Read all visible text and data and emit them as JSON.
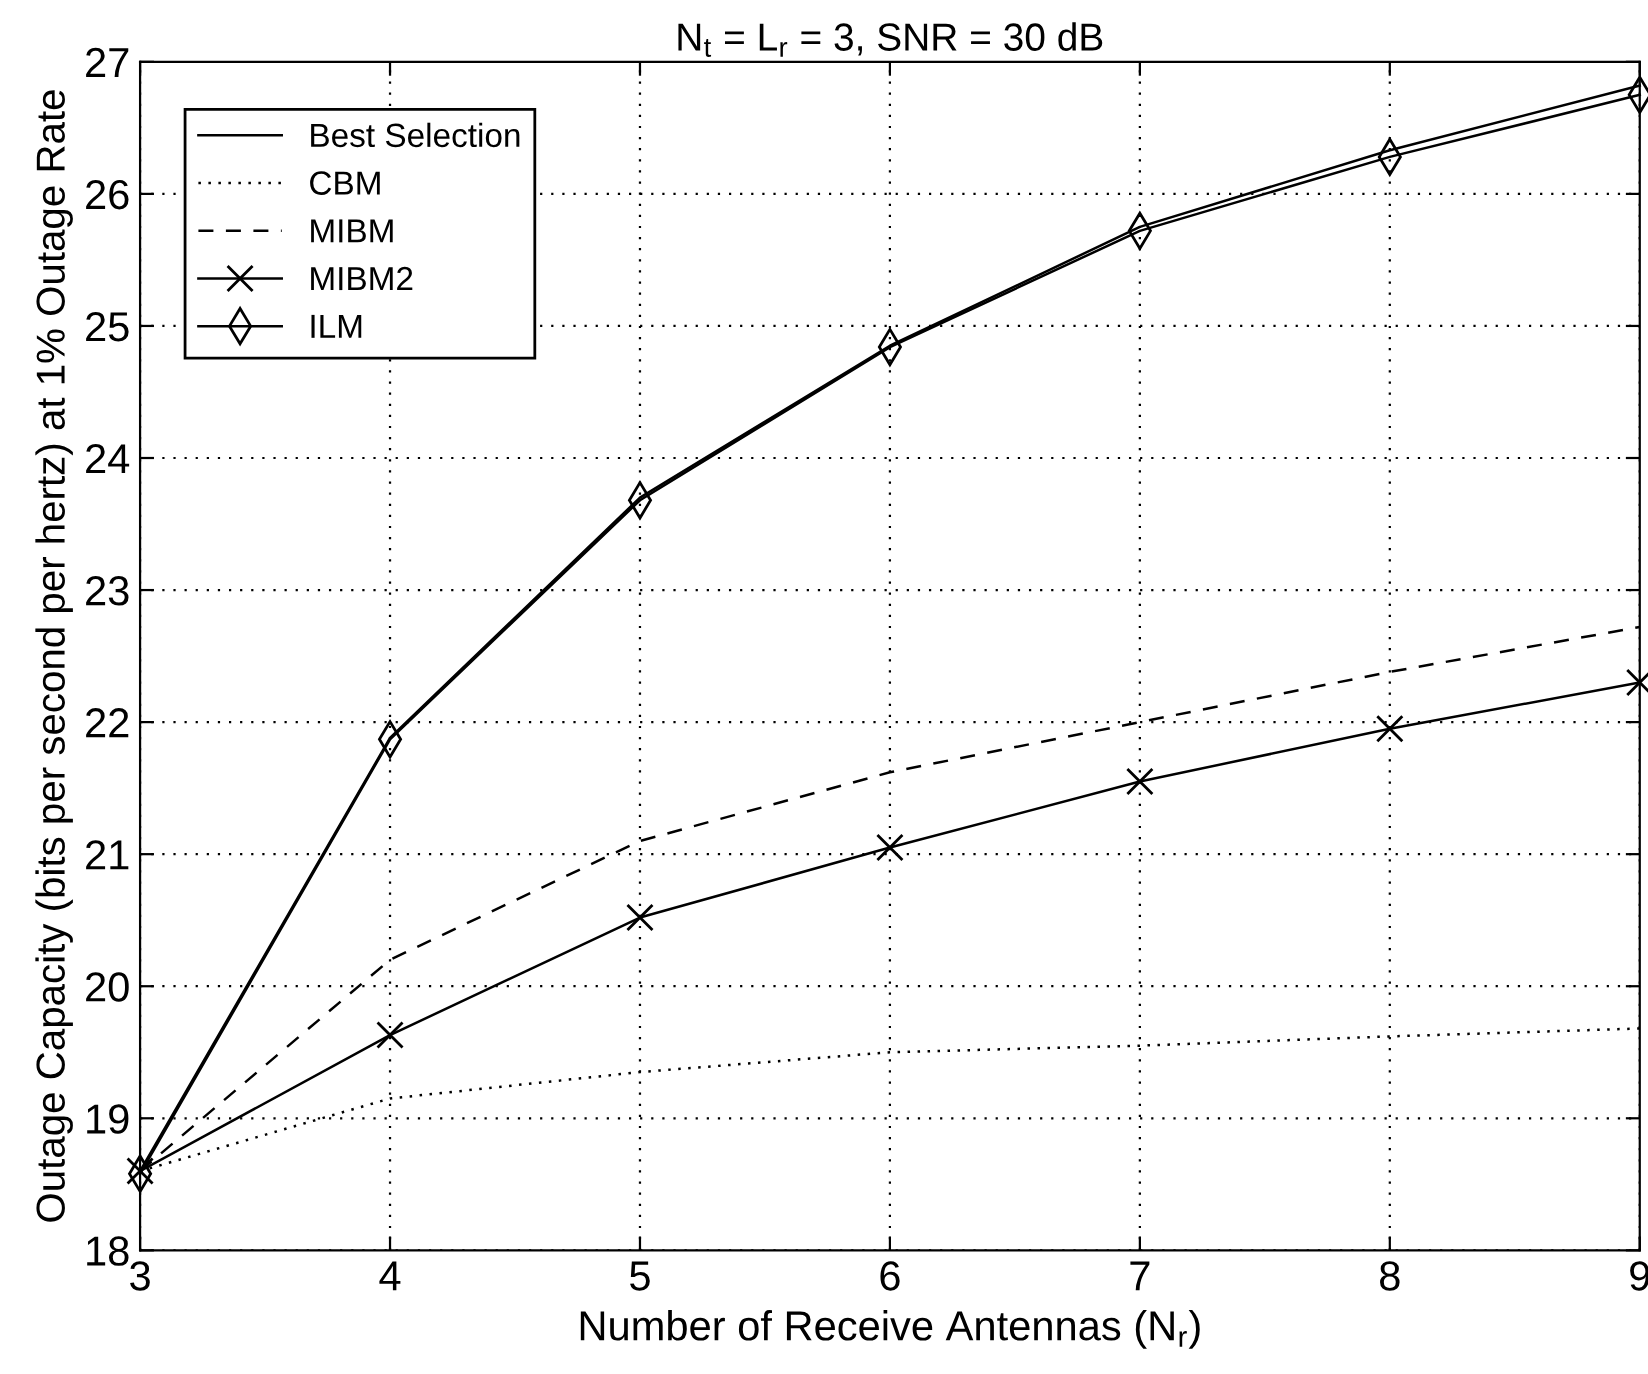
{
  "chart_data": {
    "type": "line",
    "title": "N$_{t}$ = L$_{r}$ = 3, SNR = 30 dB",
    "xlabel": "Number of Receive Antennas (N$_{r}$)",
    "ylabel": "Outage Capacity (bits per second per hertz) at 1% Outage Rate",
    "x": [
      3,
      4,
      5,
      6,
      7,
      8,
      9
    ],
    "series": [
      {
        "name": "Best Selection",
        "color": "#000000",
        "line_style": "solid",
        "marker": "none",
        "values": [
          18.6,
          21.88,
          23.7,
          24.85,
          25.75,
          26.33,
          26.82
        ]
      },
      {
        "name": "CBM",
        "color": "#000000",
        "line_style": "dotted",
        "marker": "none",
        "values": [
          18.6,
          19.15,
          19.35,
          19.5,
          19.55,
          19.62,
          19.68
        ]
      },
      {
        "name": "MIBM",
        "color": "#000000",
        "line_style": "dashed",
        "marker": "none",
        "values": [
          18.6,
          20.2,
          21.1,
          21.62,
          22.0,
          22.38,
          22.72
        ]
      },
      {
        "name": "MIBM2",
        "color": "#000000",
        "line_style": "solid",
        "marker": "cross",
        "values": [
          18.6,
          19.63,
          20.52,
          21.05,
          21.55,
          21.95,
          22.3
        ]
      },
      {
        "name": "ILM",
        "color": "#000000",
        "line_style": "solid",
        "marker": "diamond",
        "values": [
          18.58,
          21.87,
          23.68,
          24.84,
          25.72,
          26.28,
          26.75
        ]
      }
    ],
    "xlim": [
      3,
      9
    ],
    "xticks": [
      3,
      4,
      5,
      6,
      7,
      8,
      9
    ],
    "ylim": [
      18,
      27
    ],
    "yticks": [
      18,
      19,
      20,
      21,
      22,
      23,
      24,
      25,
      26,
      27
    ],
    "grid": true,
    "legend": "top left"
  }
}
